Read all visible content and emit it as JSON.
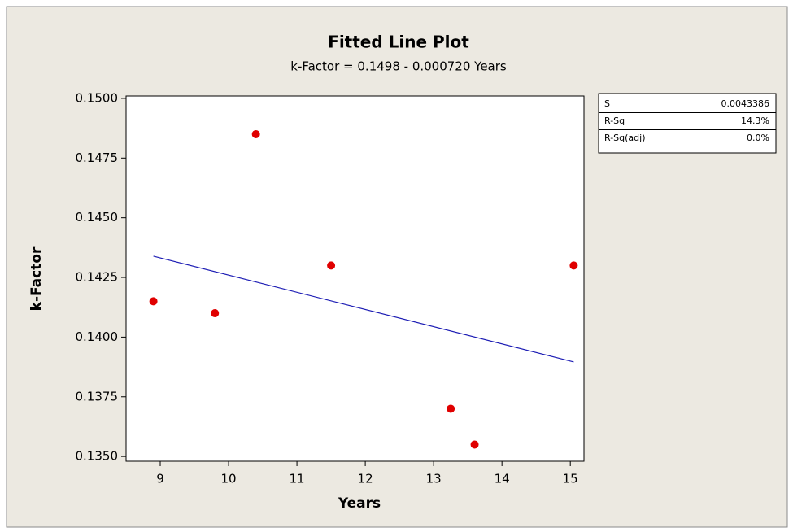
{
  "chart_data": {
    "type": "scatter",
    "title": "Fitted Line Plot",
    "subtitle": "k-Factor =  0.1498 - 0.000720 Years",
    "x_label": "Years",
    "y_label": "k-Factor",
    "points": {
      "color": "#e00000",
      "x": [
        8.9,
        9.8,
        10.4,
        11.5,
        13.25,
        13.6,
        15.05
      ],
      "values": [
        0.1415,
        0.141,
        0.1485,
        0.143,
        0.137,
        0.1355,
        0.143
      ]
    },
    "fit": {
      "color": "#1c1cb4",
      "x": [
        8.9,
        15.05
      ],
      "values": [
        0.14339,
        0.13896
      ]
    },
    "xlim": [
      8.5,
      15.2
    ],
    "ylim": [
      0.1348,
      0.1501
    ],
    "xticks": [
      9,
      10,
      11,
      12,
      13,
      14,
      15
    ],
    "yticks": [
      {
        "value": 0.135,
        "label": "0.1350"
      },
      {
        "value": 0.1375,
        "label": "0.1375"
      },
      {
        "value": 0.14,
        "label": "0.1400"
      },
      {
        "value": 0.1425,
        "label": "0.1425"
      },
      {
        "value": 0.145,
        "label": "0.1450"
      },
      {
        "value": 0.1475,
        "label": "0.1475"
      },
      {
        "value": 0.15,
        "label": "0.1500"
      }
    ],
    "grid": false,
    "stats": [
      [
        "S",
        "0.0043386"
      ],
      [
        "R-Sq",
        "14.3%"
      ],
      [
        "R-Sq(adj)",
        "0.0%"
      ]
    ]
  }
}
